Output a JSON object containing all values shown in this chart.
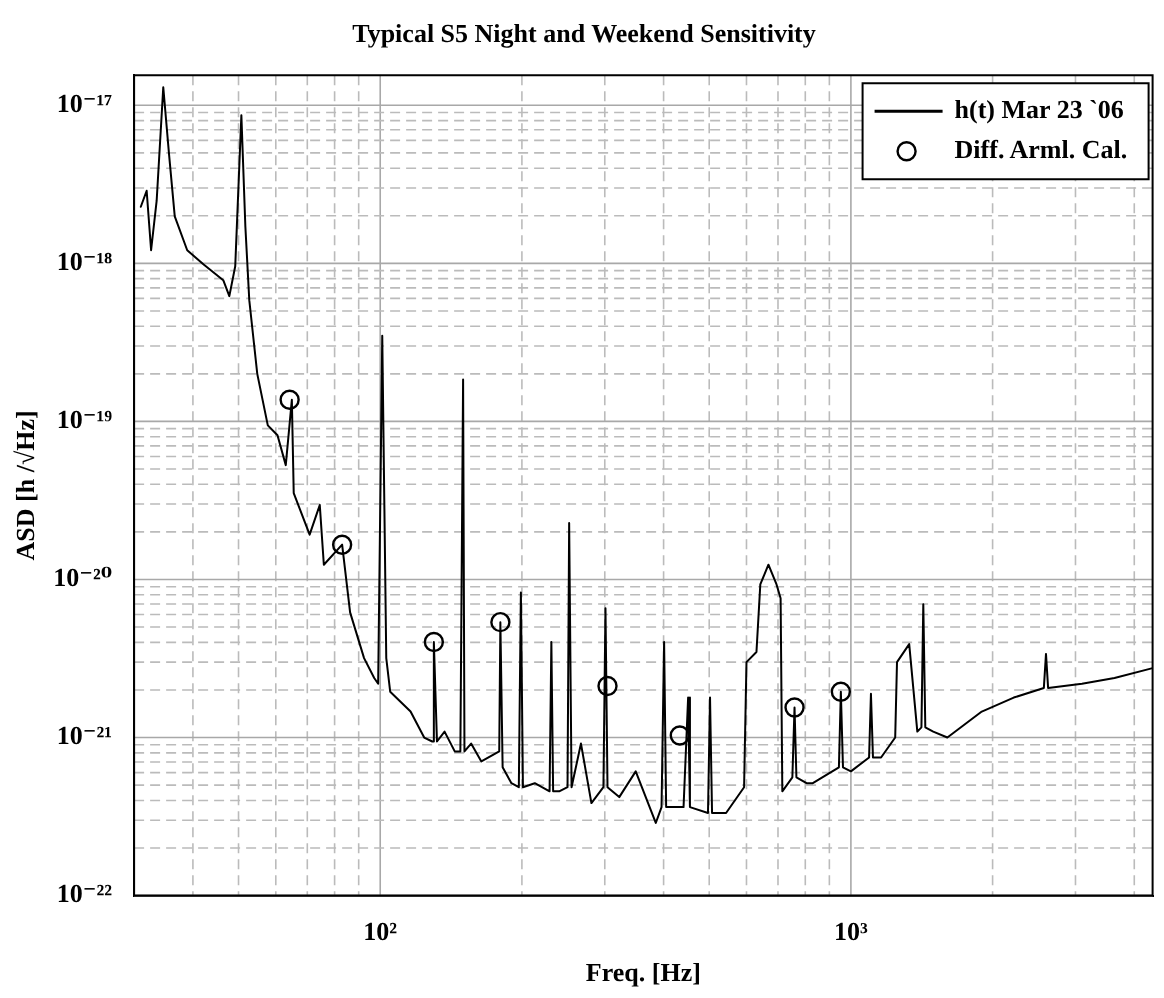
{
  "chart_data": {
    "type": "line",
    "title": "Typical S5 Night and Weekend Sensitivity",
    "xlabel": "Freq. [Hz]",
    "ylabel": "ASD [h /√Hz]",
    "log": "xy",
    "grid": true,
    "legend": "top right",
    "xlim": [
      30,
      4375
    ],
    "ylim": [
      1e-22,
      1.55e-17
    ],
    "xticks": [
      {
        "value": 40,
        "label": null
      },
      {
        "value": 50,
        "label": null
      },
      {
        "value": 60,
        "label": null
      },
      {
        "value": 70,
        "label": null
      },
      {
        "value": 80,
        "label": null
      },
      {
        "value": 90,
        "label": null
      },
      {
        "value": 100,
        "label": "10²"
      },
      {
        "value": 200,
        "label": null
      },
      {
        "value": 300,
        "label": null
      },
      {
        "value": 400,
        "label": null
      },
      {
        "value": 500,
        "label": null
      },
      {
        "value": 600,
        "label": null
      },
      {
        "value": 700,
        "label": null
      },
      {
        "value": 800,
        "label": null
      },
      {
        "value": 900,
        "label": null
      },
      {
        "value": 1000,
        "label": "10³"
      },
      {
        "value": 2000,
        "label": null
      },
      {
        "value": 3000,
        "label": null
      },
      {
        "value": 4000,
        "label": null
      }
    ],
    "yticks": [
      {
        "value": 1e-22,
        "label": "10⁻²²"
      },
      {
        "value": 2e-22,
        "label": null
      },
      {
        "value": 3e-22,
        "label": null
      },
      {
        "value": 4e-22,
        "label": null
      },
      {
        "value": 5e-22,
        "label": null
      },
      {
        "value": 6e-22,
        "label": null
      },
      {
        "value": 7e-22,
        "label": null
      },
      {
        "value": 8e-22,
        "label": null
      },
      {
        "value": 9e-22,
        "label": null
      },
      {
        "value": 1e-21,
        "label": "10⁻²¹"
      },
      {
        "value": 2e-21,
        "label": null
      },
      {
        "value": 3e-21,
        "label": null
      },
      {
        "value": 4e-21,
        "label": null
      },
      {
        "value": 5e-21,
        "label": null
      },
      {
        "value": 6e-21,
        "label": null
      },
      {
        "value": 7e-21,
        "label": null
      },
      {
        "value": 8e-21,
        "label": null
      },
      {
        "value": 9e-21,
        "label": null
      },
      {
        "value": 1e-20,
        "label": "10⁻²⁰"
      },
      {
        "value": 2e-20,
        "label": null
      },
      {
        "value": 3e-20,
        "label": null
      },
      {
        "value": 4e-20,
        "label": null
      },
      {
        "value": 5e-20,
        "label": null
      },
      {
        "value": 6e-20,
        "label": null
      },
      {
        "value": 7e-20,
        "label": null
      },
      {
        "value": 8e-20,
        "label": null
      },
      {
        "value": 9e-20,
        "label": null
      },
      {
        "value": 1e-19,
        "label": "10⁻¹⁹"
      },
      {
        "value": 2e-19,
        "label": null
      },
      {
        "value": 3e-19,
        "label": null
      },
      {
        "value": 4e-19,
        "label": null
      },
      {
        "value": 5e-19,
        "label": null
      },
      {
        "value": 6e-19,
        "label": null
      },
      {
        "value": 7e-19,
        "label": null
      },
      {
        "value": 8e-19,
        "label": null
      },
      {
        "value": 9e-19,
        "label": null
      },
      {
        "value": 1e-18,
        "label": "10⁻¹⁸"
      },
      {
        "value": 2e-18,
        "label": null
      },
      {
        "value": 3e-18,
        "label": null
      },
      {
        "value": 4e-18,
        "label": null
      },
      {
        "value": 5e-18,
        "label": null
      },
      {
        "value": 6e-18,
        "label": null
      },
      {
        "value": 7e-18,
        "label": null
      },
      {
        "value": 8e-18,
        "label": null
      },
      {
        "value": 9e-18,
        "label": null
      },
      {
        "value": 1e-17,
        "label": "10⁻¹⁷"
      }
    ],
    "series": [
      {
        "name": "h(t) Mar 23 `06",
        "type": "line",
        "color": "#000000",
        "x": [
          31.0,
          31.9,
          32.6,
          33.5,
          34.6,
          35.6,
          36.6,
          38.9,
          42.1,
          46.4,
          47.8,
          49.2,
          50.7,
          51.7,
          52.7,
          54.8,
          57.7,
          60.5,
          63.0,
          64.9,
          65.5,
          70.8,
          74.4,
          75.9,
          83.0,
          86.3,
          92.4,
          97.1,
          99.0,
          101,
          103,
          105,
          116,
          124,
          129,
          130,
          132,
          137,
          144,
          148,
          150,
          151,
          156,
          164,
          179,
          180,
          182,
          190,
          197,
          199,
          201,
          213,
          229,
          231,
          233,
          240,
          250,
          252,
          255,
          267,
          281,
          298,
          301,
          304,
          322,
          349,
          385,
          396,
          401,
          405,
          425,
          441,
          451,
          455,
          497,
          502,
          507,
          543,
          593,
          600,
          630,
          642,
          668,
          695,
          709,
          715,
          751,
          759,
          766,
          805,
          830,
          943,
          952,
          962,
          1000,
          1093,
          1103,
          1114,
          1159,
          1242,
          1253,
          1330,
          1384,
          1412,
          1425,
          1439,
          1496,
          1603,
          1897,
          2218,
          2570,
          2597,
          2624,
          3097,
          3631,
          4375
        ],
        "values": [
          2.28e-18,
          2.88e-18,
          1.21e-18,
          2.49e-18,
          1.3e-17,
          4.85e-18,
          1.98e-18,
          1.21e-18,
          9.87e-19,
          7.82e-19,
          6.2e-19,
          9.58e-19,
          8.65e-18,
          1.71e-18,
          5.85e-19,
          2e-19,
          9.44e-20,
          8.17e-20,
          5.29e-20,
          1.37e-19,
          3.52e-20,
          1.92e-20,
          2.96e-20,
          1.24e-20,
          1.66e-20,
          6.19e-21,
          3.18e-21,
          2.38e-21,
          2.19e-21,
          3.48e-19,
          3.18e-21,
          1.95e-21,
          1.46e-21,
          1e-21,
          9.44e-22,
          4.02e-21,
          9.44e-22,
          1.09e-21,
          8.17e-22,
          8.17e-22,
          1.84e-19,
          8.17e-22,
          9.16e-22,
          7.06e-22,
          8.17e-22,
          5.37e-21,
          6.48e-22,
          5.14e-22,
          4.85e-22,
          8.28e-21,
          4.85e-22,
          5.14e-22,
          4.57e-22,
          4.02e-21,
          4.57e-22,
          4.57e-22,
          4.85e-22,
          2.28e-20,
          4.85e-22,
          9.16e-22,
          3.85e-22,
          4.85e-22,
          6.58e-21,
          4.85e-22,
          4.2e-22,
          6.11e-22,
          2.88e-22,
          3.63e-22,
          4.02e-21,
          3.63e-22,
          3.63e-22,
          3.63e-22,
          1.79e-21,
          3.63e-22,
          3.33e-22,
          1.79e-21,
          3.33e-22,
          3.33e-22,
          4.85e-22,
          3e-21,
          3.48e-21,
          9.3e-21,
          1.24e-20,
          9.3e-21,
          7.6e-21,
          4.57e-22,
          5.6e-22,
          1.55e-21,
          5.6e-22,
          5.14e-22,
          5.14e-22,
          6.48e-22,
          1.95e-21,
          6.48e-22,
          6.11e-22,
          7.48e-22,
          1.89e-21,
          7.48e-22,
          7.48e-22,
          1e-21,
          3e-21,
          3.9e-21,
          1.09e-21,
          1.16e-21,
          6.97e-21,
          1.16e-21,
          1.09e-21,
          1e-21,
          1.46e-21,
          1.79e-21,
          2.06e-21,
          3.38e-21,
          2.06e-21,
          2.19e-21,
          2.38e-21,
          2.75e-21
        ]
      },
      {
        "name": "Diff. Arml. Cal.",
        "type": "scatter",
        "color": "#000000",
        "marker": "circle",
        "x": [
          64.2,
          83.0,
          130,
          180,
          304,
          433,
          759,
          952
        ],
        "values": [
          1.37e-19,
          1.66e-20,
          4.02e-21,
          5.37e-21,
          2.12e-21,
          1.03e-21,
          1.55e-21,
          1.95e-21
        ]
      }
    ]
  }
}
